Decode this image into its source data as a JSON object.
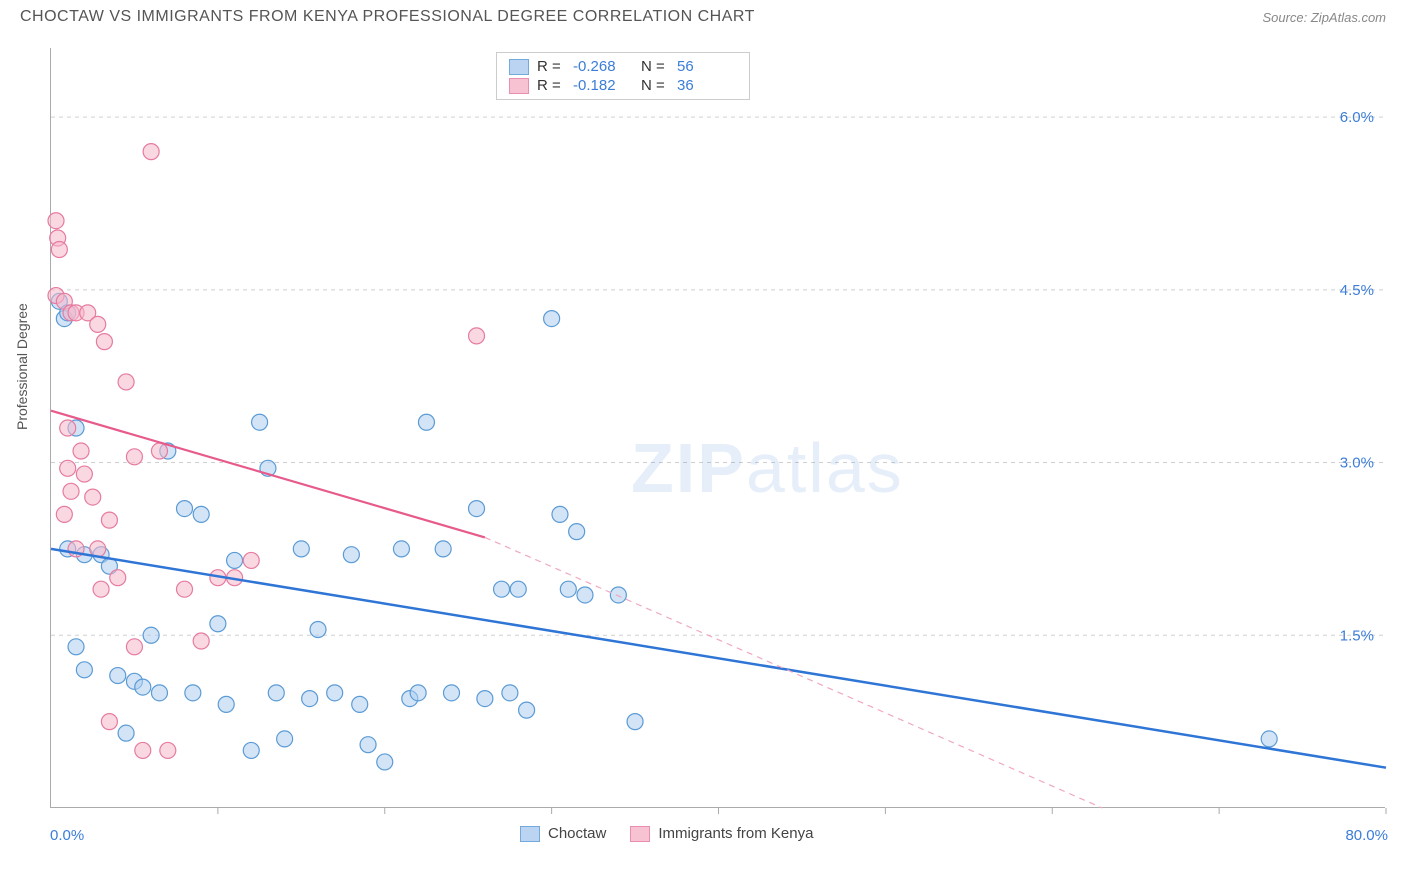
{
  "title": "CHOCTAW VS IMMIGRANTS FROM KENYA PROFESSIONAL DEGREE CORRELATION CHART",
  "source": "Source: ZipAtlas.com",
  "watermark_bold": "ZIP",
  "watermark_light": "atlas",
  "yaxis_title": "Professional Degree",
  "chart": {
    "type": "scatter",
    "xlim": [
      0,
      80
    ],
    "ylim": [
      0,
      6.6
    ],
    "xaxis_min_label": "0.0%",
    "xaxis_max_label": "80.0%",
    "ytick_values": [
      1.5,
      3.0,
      4.5,
      6.0
    ],
    "ytick_labels": [
      "1.5%",
      "3.0%",
      "4.5%",
      "6.0%"
    ],
    "xtick_values": [
      10,
      20,
      30,
      40,
      50,
      60,
      70,
      80
    ],
    "background_color": "#ffffff",
    "grid_color": "#d0d0d0",
    "axis_color": "#aaaaaa",
    "marker_radius": 8,
    "marker_stroke_width": 1.2,
    "series": [
      {
        "name": "Choctaw",
        "key": "choctaw",
        "fill": "#aecdf0",
        "stroke": "#5b9bd5",
        "fill_opacity": 0.55,
        "R": "-0.268",
        "N": "56",
        "trend": {
          "x1": 0,
          "y1": 2.25,
          "x2": 80,
          "y2": 0.35,
          "stroke": "#2e75d6",
          "width": 2.5,
          "dash": "none"
        },
        "points": [
          [
            0.5,
            4.4
          ],
          [
            0.8,
            4.25
          ],
          [
            1.0,
            4.3
          ],
          [
            1.5,
            3.3
          ],
          [
            1.0,
            2.25
          ],
          [
            2.0,
            2.2
          ],
          [
            3.0,
            2.2
          ],
          [
            3.5,
            2.1
          ],
          [
            1.5,
            1.4
          ],
          [
            2.0,
            1.2
          ],
          [
            4.0,
            1.15
          ],
          [
            5.0,
            1.1
          ],
          [
            5.5,
            1.05
          ],
          [
            6.0,
            1.5
          ],
          [
            7.0,
            3.1
          ],
          [
            8.0,
            2.6
          ],
          [
            9.0,
            2.55
          ],
          [
            10.0,
            1.6
          ],
          [
            10.5,
            0.9
          ],
          [
            11.0,
            2.15
          ],
          [
            12.0,
            0.5
          ],
          [
            12.5,
            3.35
          ],
          [
            13.0,
            2.95
          ],
          [
            13.5,
            1.0
          ],
          [
            14.0,
            0.6
          ],
          [
            15.0,
            2.25
          ],
          [
            15.5,
            0.95
          ],
          [
            16.0,
            1.55
          ],
          [
            17.0,
            1.0
          ],
          [
            18.0,
            2.2
          ],
          [
            18.5,
            0.9
          ],
          [
            19.0,
            0.55
          ],
          [
            20.0,
            0.4
          ],
          [
            21.0,
            2.25
          ],
          [
            21.5,
            0.95
          ],
          [
            22.0,
            1.0
          ],
          [
            22.5,
            3.35
          ],
          [
            23.5,
            2.25
          ],
          [
            24.0,
            1.0
          ],
          [
            25.5,
            2.6
          ],
          [
            26.0,
            0.95
          ],
          [
            27.0,
            1.9
          ],
          [
            27.5,
            1.0
          ],
          [
            28.0,
            1.9
          ],
          [
            28.5,
            0.85
          ],
          [
            30.0,
            4.25
          ],
          [
            30.5,
            2.55
          ],
          [
            31.0,
            1.9
          ],
          [
            31.5,
            2.4
          ],
          [
            32.0,
            1.85
          ],
          [
            34.0,
            1.85
          ],
          [
            35.0,
            0.75
          ],
          [
            73.0,
            0.6
          ],
          [
            6.5,
            1.0
          ],
          [
            4.5,
            0.65
          ],
          [
            8.5,
            1.0
          ]
        ]
      },
      {
        "name": "Immigrants from Kenya",
        "key": "kenya",
        "fill": "#f6b8ca",
        "stroke": "#e67ba0",
        "fill_opacity": 0.55,
        "R": "-0.182",
        "N": "36",
        "trend_solid": {
          "x1": 0,
          "y1": 3.45,
          "x2": 26,
          "y2": 2.35,
          "stroke": "#e75a8c",
          "width": 2.2
        },
        "trend_dashed": {
          "x1": 26,
          "y1": 2.35,
          "x2": 63,
          "y2": 0.0,
          "stroke": "#f0a8bf",
          "width": 1.2,
          "dash": "6,5"
        },
        "points": [
          [
            0.3,
            5.1
          ],
          [
            0.4,
            4.95
          ],
          [
            0.5,
            4.85
          ],
          [
            0.3,
            4.45
          ],
          [
            0.8,
            4.4
          ],
          [
            1.2,
            4.3
          ],
          [
            1.5,
            4.3
          ],
          [
            2.2,
            4.3
          ],
          [
            2.8,
            4.2
          ],
          [
            3.2,
            4.05
          ],
          [
            1.0,
            3.3
          ],
          [
            4.5,
            3.7
          ],
          [
            1.8,
            3.1
          ],
          [
            1.0,
            2.95
          ],
          [
            2.0,
            2.9
          ],
          [
            1.2,
            2.75
          ],
          [
            2.5,
            2.7
          ],
          [
            0.8,
            2.55
          ],
          [
            3.5,
            2.5
          ],
          [
            1.5,
            2.25
          ],
          [
            2.8,
            2.25
          ],
          [
            4.0,
            2.0
          ],
          [
            5.0,
            3.05
          ],
          [
            6.0,
            5.7
          ],
          [
            6.5,
            3.1
          ],
          [
            8.0,
            1.9
          ],
          [
            9.0,
            1.45
          ],
          [
            3.0,
            1.9
          ],
          [
            3.5,
            0.75
          ],
          [
            5.0,
            1.4
          ],
          [
            5.5,
            0.5
          ],
          [
            7.0,
            0.5
          ],
          [
            10.0,
            2.0
          ],
          [
            11.0,
            2.0
          ],
          [
            12.0,
            2.15
          ],
          [
            25.5,
            4.1
          ]
        ]
      }
    ]
  },
  "legend_top": {
    "R_label": "R =",
    "N_label": "N ="
  },
  "legend_bottom": {
    "items": [
      "Choctaw",
      "Immigrants from Kenya"
    ]
  }
}
